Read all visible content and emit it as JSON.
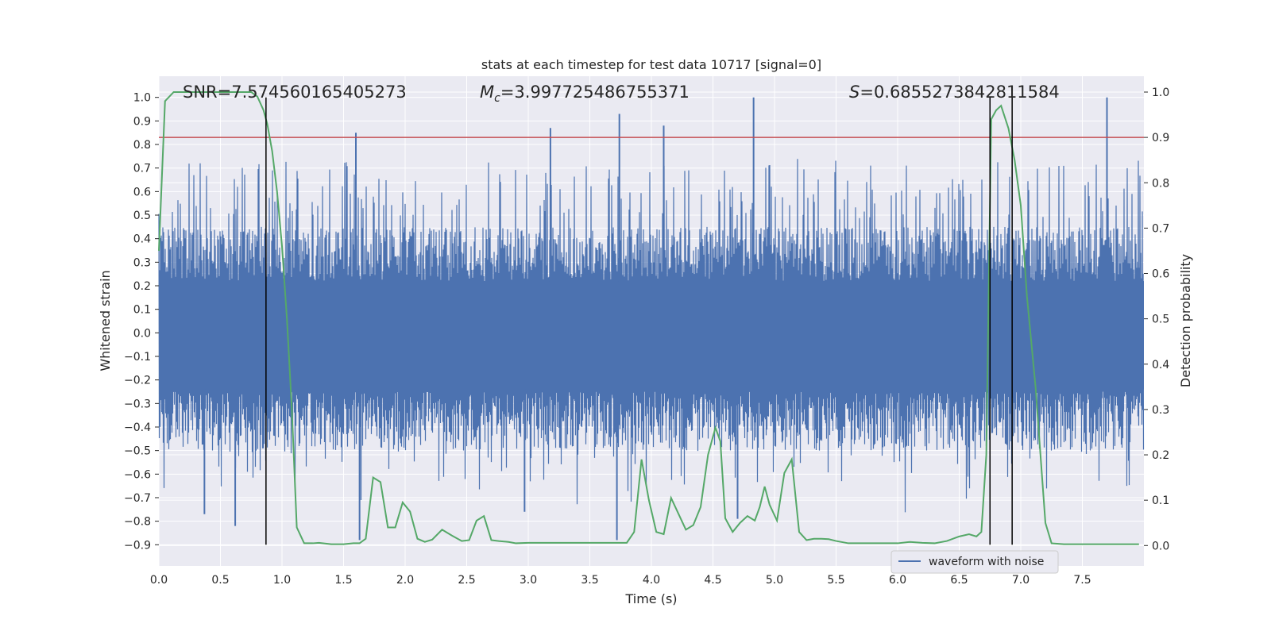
{
  "chart_data": {
    "type": "line",
    "title": "stats at each timestep for test data 10717 [signal=0]",
    "xlabel": "Time (s)",
    "ylabel_left": "Whitened strain",
    "ylabel_right": "Detection probability",
    "xlim": [
      0.0,
      8.0
    ],
    "ylim_left": [
      -0.99,
      1.09
    ],
    "ylim_right": [
      -0.045,
      1.035
    ],
    "x_ticks": [
      "0.0",
      "0.5",
      "1.0",
      "1.5",
      "2.0",
      "2.5",
      "3.0",
      "3.5",
      "4.0",
      "4.5",
      "5.0",
      "5.5",
      "6.0",
      "6.5",
      "7.0",
      "7.5"
    ],
    "x_tick_values": [
      0.0,
      0.5,
      1.0,
      1.5,
      2.0,
      2.5,
      3.0,
      3.5,
      4.0,
      4.5,
      5.0,
      5.5,
      6.0,
      6.5,
      7.0,
      7.5
    ],
    "y_left_ticks": [
      "−0.9",
      "−0.8",
      "−0.7",
      "−0.6",
      "−0.5",
      "−0.4",
      "−0.3",
      "−0.2",
      "−0.1",
      "0.0",
      "0.1",
      "0.2",
      "0.3",
      "0.4",
      "0.5",
      "0.6",
      "0.7",
      "0.8",
      "0.9",
      "1.0"
    ],
    "y_left_tick_values": [
      -0.9,
      -0.8,
      -0.7,
      -0.6,
      -0.5,
      -0.4,
      -0.3,
      -0.2,
      -0.1,
      0.0,
      0.1,
      0.2,
      0.3,
      0.4,
      0.5,
      0.6,
      0.7,
      0.8,
      0.9,
      1.0
    ],
    "y_right_ticks": [
      "0.0",
      "0.1",
      "0.2",
      "0.3",
      "0.4",
      "0.5",
      "0.6",
      "0.7",
      "0.8",
      "0.9",
      "1.0"
    ],
    "y_right_tick_values": [
      0.0,
      0.1,
      0.2,
      0.3,
      0.4,
      0.5,
      0.6,
      0.7,
      0.8,
      0.9,
      1.0
    ],
    "grid": true,
    "legend_position": "lower-right",
    "annotations": {
      "snr": "SNR=7.574560165405273",
      "mc_symbol": "M",
      "mc_sub": "c",
      "mc_value": "=3.997725486755371",
      "s_symbol": "S",
      "s_value": "=0.6855273842811584"
    },
    "series": [
      {
        "name": "waveform with noise",
        "axis": "left",
        "color": "#4c72b0",
        "kind": "noise-band",
        "duration": 8.0,
        "typical_envelope": [
          -0.5,
          0.45
        ],
        "spikes": [
          {
            "x": 1.6,
            "y": 0.85
          },
          {
            "x": 3.18,
            "y": 0.87
          },
          {
            "x": 3.74,
            "y": 0.93
          },
          {
            "x": 4.1,
            "y": 0.88
          },
          {
            "x": 4.83,
            "y": 1.0
          },
          {
            "x": 7.7,
            "y": 1.0
          },
          {
            "x": 1.63,
            "y": -0.88
          },
          {
            "x": 3.72,
            "y": -0.88
          },
          {
            "x": 0.62,
            "y": -0.82
          },
          {
            "x": 0.37,
            "y": -0.77
          },
          {
            "x": 4.7,
            "y": -0.79
          },
          {
            "x": 2.97,
            "y": -0.76
          }
        ]
      },
      {
        "name": "detection probability",
        "axis": "right",
        "color": "#55a868",
        "x": [
          0.0,
          0.05,
          0.12,
          0.2,
          0.3,
          0.4,
          0.5,
          0.6,
          0.7,
          0.75,
          0.8,
          0.85,
          0.88,
          0.92,
          0.96,
          1.0,
          1.04,
          1.08,
          1.12,
          1.18,
          1.25,
          1.3,
          1.4,
          1.5,
          1.58,
          1.63,
          1.68,
          1.74,
          1.8,
          1.86,
          1.92,
          1.98,
          2.04,
          2.1,
          2.16,
          2.22,
          2.3,
          2.38,
          2.46,
          2.52,
          2.58,
          2.64,
          2.7,
          2.76,
          2.84,
          2.9,
          3.0,
          3.2,
          3.4,
          3.6,
          3.8,
          3.86,
          3.92,
          3.98,
          4.04,
          4.1,
          4.16,
          4.22,
          4.28,
          4.34,
          4.4,
          4.46,
          4.52,
          4.56,
          4.6,
          4.66,
          4.72,
          4.78,
          4.84,
          4.88,
          4.92,
          4.96,
          5.02,
          5.08,
          5.14,
          5.2,
          5.26,
          5.32,
          5.38,
          5.44,
          5.5,
          5.6,
          5.7,
          5.8,
          5.9,
          6.0,
          6.1,
          6.2,
          6.3,
          6.4,
          6.5,
          6.58,
          6.64,
          6.68,
          6.72,
          6.76,
          6.8,
          6.84,
          6.9,
          6.95,
          7.0,
          7.05,
          7.12,
          7.2,
          7.25,
          7.35,
          7.5,
          7.7,
          7.9,
          7.96
        ],
        "y": [
          0.65,
          0.98,
          1.0,
          1.0,
          1.0,
          1.0,
          1.0,
          1.0,
          1.0,
          1.0,
          0.99,
          0.96,
          0.93,
          0.87,
          0.78,
          0.66,
          0.5,
          0.3,
          0.04,
          0.005,
          0.005,
          0.006,
          0.003,
          0.003,
          0.005,
          0.005,
          0.015,
          0.15,
          0.14,
          0.04,
          0.04,
          0.095,
          0.075,
          0.015,
          0.008,
          0.013,
          0.035,
          0.022,
          0.01,
          0.012,
          0.055,
          0.065,
          0.012,
          0.01,
          0.008,
          0.005,
          0.006,
          0.006,
          0.006,
          0.006,
          0.006,
          0.03,
          0.19,
          0.1,
          0.03,
          0.025,
          0.105,
          0.07,
          0.035,
          0.045,
          0.085,
          0.2,
          0.26,
          0.23,
          0.06,
          0.03,
          0.05,
          0.065,
          0.055,
          0.085,
          0.13,
          0.09,
          0.055,
          0.16,
          0.19,
          0.03,
          0.012,
          0.015,
          0.015,
          0.014,
          0.01,
          0.005,
          0.005,
          0.005,
          0.005,
          0.005,
          0.008,
          0.006,
          0.005,
          0.01,
          0.02,
          0.025,
          0.02,
          0.03,
          0.2,
          0.94,
          0.96,
          0.97,
          0.92,
          0.85,
          0.75,
          0.55,
          0.35,
          0.05,
          0.005,
          0.003,
          0.003,
          0.003,
          0.003,
          0.003
        ]
      }
    ],
    "threshold_line": {
      "axis": "right",
      "y": 0.9,
      "color": "#c44e52"
    },
    "vertical_lines": {
      "axis": "x",
      "x": [
        0.87,
        6.75,
        6.93
      ],
      "color": "#000000",
      "y_from_left": -0.9,
      "y_to_left": 1.0
    }
  }
}
